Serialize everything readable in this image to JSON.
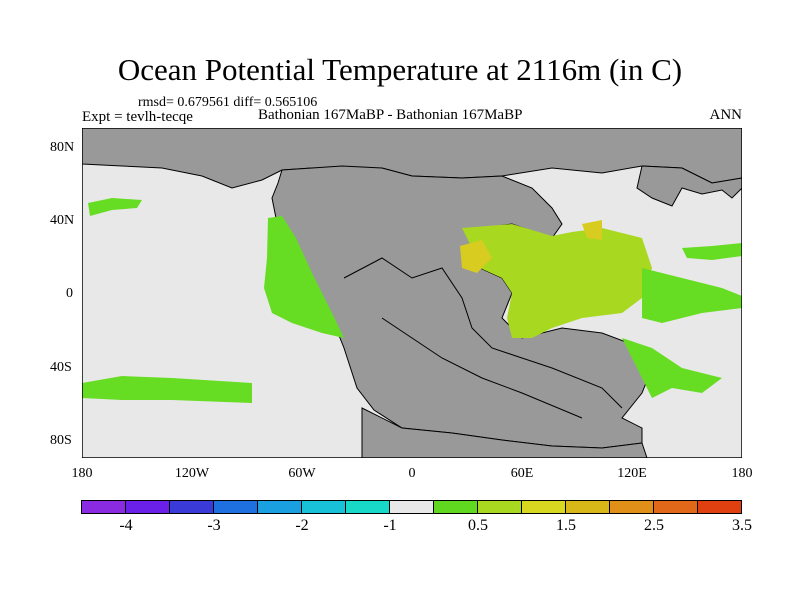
{
  "title": "Ocean Potential Temperature at 2116m (in C)",
  "stats": "rmsd= 0.679561 diff= 0.565106",
  "expt": "Expt = tevlh-tecqe",
  "subtitle": "Bathonian 167MaBP - Bathonian 167MaBP",
  "season": "ANN",
  "lat_labels": [
    "80N",
    "40N",
    "0",
    "40S",
    "80S"
  ],
  "lon_labels": [
    "180",
    "120W",
    "60W",
    "0",
    "60E",
    "120E",
    "180"
  ],
  "colorbar": {
    "colors": [
      "#8a2be2",
      "#6a20e8",
      "#3a3ad8",
      "#1e6fe0",
      "#1aa0e0",
      "#18c0d8",
      "#18d8c8",
      "#e8e8e8",
      "#60d820",
      "#a8d820",
      "#d8d820",
      "#d8b818",
      "#e09018",
      "#e06818",
      "#e04010"
    ],
    "labels": [
      "-4",
      "-3",
      "-2",
      "-1",
      "0.5",
      "1.5",
      "2.5",
      "3.5"
    ]
  },
  "map_colors": {
    "land": "#999999",
    "ocean": "#e8e8e8",
    "green": "#66dd22",
    "lightgreen": "#a8d820",
    "yellow": "#d8cc20"
  }
}
